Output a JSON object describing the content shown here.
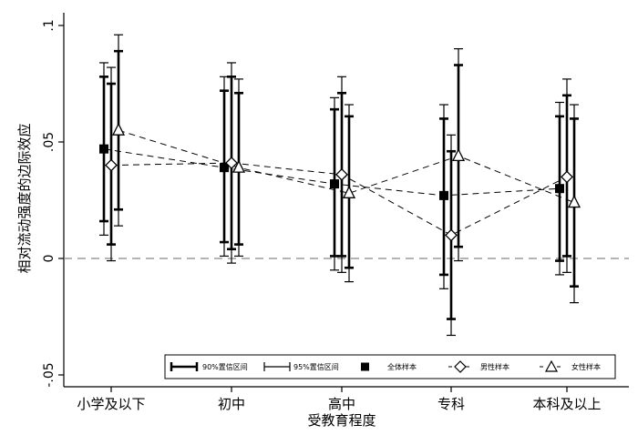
{
  "chart_data": {
    "type": "scatter",
    "title": "",
    "xlabel": "受教育程度",
    "ylabel": "相对流动强度的边际效应",
    "categories": [
      "小学及以下",
      "初中",
      "高中",
      "专科",
      "本科及以上"
    ],
    "ylim": [
      -0.05,
      0.1
    ],
    "yticks": [
      -0.05,
      0,
      0.05,
      0.1
    ],
    "ytick_labels": [
      "-.05",
      "0",
      ".05",
      ".1"
    ],
    "reference_line": {
      "y": 0,
      "style": "dashed"
    },
    "grid": false,
    "legend_position": "bottom-inside",
    "legend": {
      "ci90": "90%置信区间",
      "ci95": "95%置信区间"
    },
    "series": [
      {
        "name": "全体样本",
        "marker": "square-filled",
        "values": [
          0.047,
          0.039,
          0.032,
          0.027,
          0.03
        ],
        "ci90": [
          [
            0.016,
            0.078
          ],
          [
            0.007,
            0.072
          ],
          [
            0.001,
            0.064
          ],
          [
            -0.007,
            0.06
          ],
          [
            -0.001,
            0.061
          ]
        ],
        "ci95": [
          [
            0.01,
            0.084
          ],
          [
            0.001,
            0.078
          ],
          [
            -0.005,
            0.069
          ],
          [
            -0.013,
            0.066
          ],
          [
            -0.007,
            0.067
          ]
        ]
      },
      {
        "name": "男性样本",
        "marker": "diamond-hollow",
        "values": [
          0.04,
          0.041,
          0.036,
          0.01,
          0.035
        ],
        "ci90": [
          [
            0.006,
            0.075
          ],
          [
            0.004,
            0.078
          ],
          [
            0.001,
            0.071
          ],
          [
            -0.026,
            0.046
          ],
          [
            0.001,
            0.07
          ]
        ],
        "ci95": [
          [
            -0.001,
            0.082
          ],
          [
            -0.002,
            0.084
          ],
          [
            -0.006,
            0.078
          ],
          [
            -0.033,
            0.053
          ],
          [
            -0.006,
            0.077
          ]
        ]
      },
      {
        "name": "女性样本",
        "marker": "triangle-hollow",
        "values": [
          0.055,
          0.039,
          0.028,
          0.044,
          0.024
        ],
        "ci90": [
          [
            0.021,
            0.089
          ],
          [
            0.006,
            0.071
          ],
          [
            -0.004,
            0.061
          ],
          [
            0.005,
            0.083
          ],
          [
            -0.012,
            0.06
          ]
        ],
        "ci95": [
          [
            0.014,
            0.096
          ],
          [
            0.001,
            0.077
          ],
          [
            -0.01,
            0.066
          ],
          [
            -0.001,
            0.09
          ],
          [
            -0.019,
            0.066
          ]
        ]
      }
    ]
  }
}
